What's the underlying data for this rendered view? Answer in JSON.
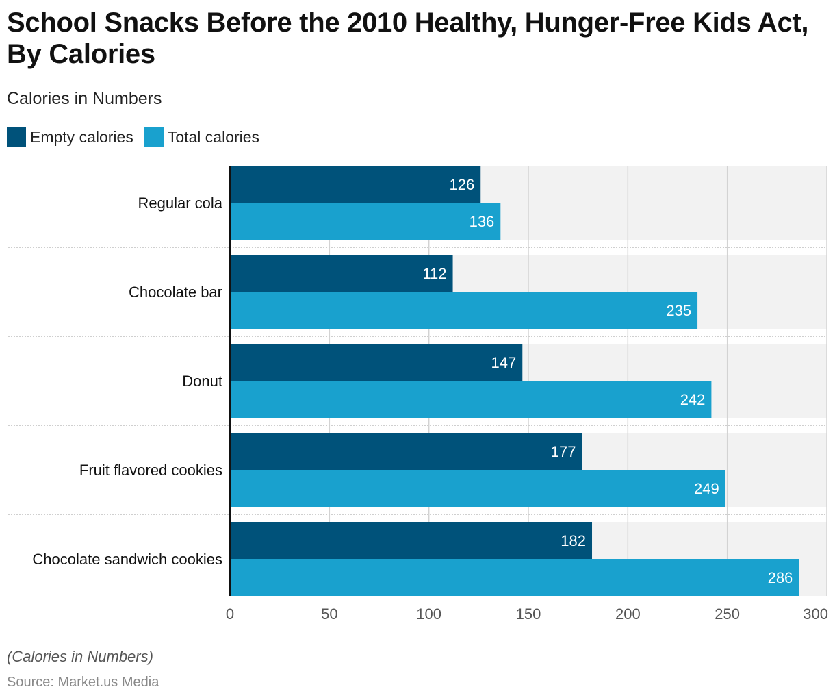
{
  "title": "School Snacks Before the 2010 Healthy, Hunger-Free Kids Act, By Calories",
  "subtitle": "Calories in Numbers",
  "footer": {
    "note": "(Calories in Numbers)",
    "source": "Source: Market.us Media"
  },
  "chart_data": {
    "type": "bar",
    "orientation": "horizontal",
    "title": "School Snacks Before the 2010 Healthy, Hunger-Free Kids Act, By Calories",
    "subtitle": "Calories in Numbers",
    "xlabel": "",
    "ylabel": "",
    "xlim": [
      0,
      300
    ],
    "ticks": [
      0,
      50,
      100,
      150,
      200,
      250,
      300
    ],
    "grid": true,
    "legend_position": "top-left",
    "categories": [
      "Regular cola",
      "Chocolate bar",
      "Donut",
      "Fruit flavored cookies",
      "Chocolate sandwich cookies"
    ],
    "series": [
      {
        "name": "Empty calories",
        "color": "#00527a",
        "values": [
          126,
          112,
          147,
          177,
          182
        ]
      },
      {
        "name": "Total calories",
        "color": "#19a1ce",
        "values": [
          136,
          235,
          242,
          249,
          286
        ]
      }
    ]
  }
}
